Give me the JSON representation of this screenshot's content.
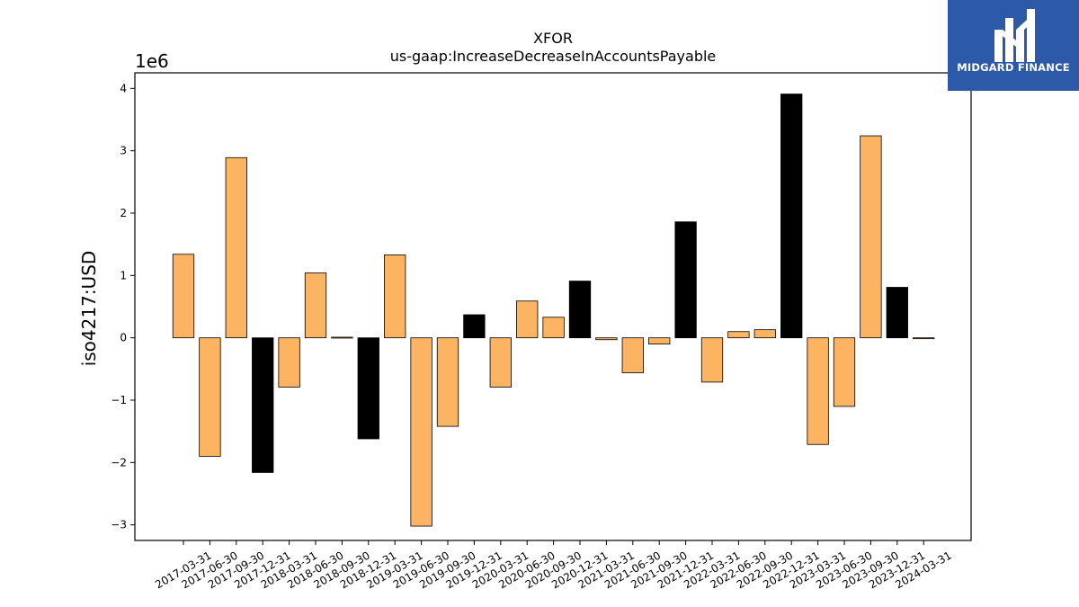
{
  "chart_data": {
    "type": "bar",
    "title": "XFOR",
    "subtitle": "us-gaap:IncreaseDecreaseInAccountsPayable",
    "ylabel": "iso4217:USD",
    "xlabel": "",
    "y_multiplier": "1e6",
    "ylim": [
      -3.25,
      4.25
    ],
    "yticks": [
      -3,
      -2,
      -1,
      0,
      1,
      2,
      3,
      4
    ],
    "ytick_labels": [
      "−3",
      "−2",
      "−1",
      "0",
      "1",
      "2",
      "3",
      "4"
    ],
    "grid": false,
    "categories": [
      "2017-03-31",
      "2017-06-30",
      "2017-09-30",
      "2017-12-31",
      "2018-03-31",
      "2018-06-30",
      "2018-09-30",
      "2018-12-31",
      "2019-03-31",
      "2019-06-30",
      "2019-09-30",
      "2019-12-31",
      "2020-03-31",
      "2020-06-30",
      "2020-09-30",
      "2020-12-31",
      "2021-03-31",
      "2021-06-30",
      "2021-09-30",
      "2021-12-31",
      "2022-03-31",
      "2022-06-30",
      "2022-09-30",
      "2022-12-31",
      "2023-03-31",
      "2023-06-30",
      "2023-09-30",
      "2023-12-31",
      "2024-03-31"
    ],
    "values": [
      1.34,
      -1.9,
      2.89,
      -2.16,
      -0.79,
      1.04,
      0.01,
      -1.62,
      1.33,
      -3.02,
      -1.42,
      0.37,
      -0.79,
      0.59,
      0.33,
      0.91,
      -0.03,
      -0.56,
      -0.1,
      1.86,
      -0.71,
      0.1,
      0.13,
      3.91,
      -1.71,
      -1.1,
      3.24,
      0.81,
      0.0
    ],
    "bar_kind": [
      "q",
      "q",
      "q",
      "a",
      "q",
      "q",
      "q",
      "a",
      "q",
      "q",
      "q",
      "a",
      "q",
      "q",
      "q",
      "a",
      "q",
      "q",
      "q",
      "a",
      "q",
      "q",
      "q",
      "a",
      "q",
      "q",
      "q",
      "a",
      "q"
    ],
    "colors": {
      "q": "#fdb462",
      "a": "#000000"
    }
  },
  "logo": {
    "name": "midgard-finance-logo",
    "text": "MIDGARD FINANCE"
  }
}
